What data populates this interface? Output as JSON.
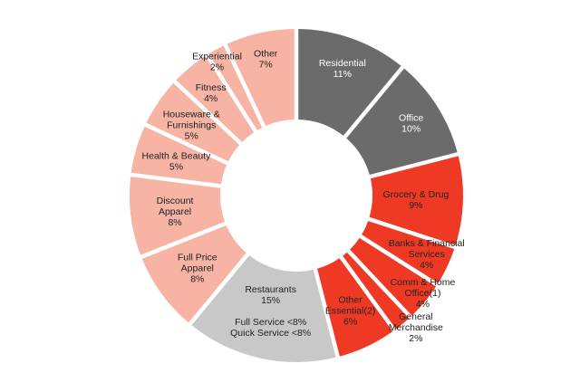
{
  "chart_data": {
    "type": "pie",
    "variant": "donut",
    "title": "",
    "segments": [
      {
        "label": "Residential",
        "value": 11,
        "value_label": "11%",
        "color": "#6b6b6b",
        "text_color": "#ffffff"
      },
      {
        "label": "Office",
        "value": 10,
        "value_label": "10%",
        "color": "#6b6b6b",
        "text_color": "#ffffff"
      },
      {
        "label": "Grocery & Drug",
        "value": 9,
        "value_label": "9%",
        "color": "#ee3a24",
        "text_color": "#222222"
      },
      {
        "label": "Banks & Financial Services",
        "value": 4,
        "value_label": "4%",
        "color": "#ee3a24",
        "text_color": "#222222"
      },
      {
        "label": "Comm & Home Office(1)",
        "value": 4,
        "value_label": "4%",
        "color": "#ee3a24",
        "text_color": "#222222"
      },
      {
        "label": "General Merchandise",
        "value": 2,
        "value_label": "2%",
        "color": "#ee3a24",
        "text_color": "#222222"
      },
      {
        "label": "Other Essential(2)",
        "value": 6,
        "value_label": "6%",
        "color": "#ee3a24",
        "text_color": "#222222"
      },
      {
        "label": "Restaurants",
        "value": 15,
        "value_label": "15%",
        "sublabels": [
          "Full Service <8%",
          "Quick Service <8%"
        ],
        "color": "#c8c8c8",
        "text_color": "#222222"
      },
      {
        "label": "Full Price Apparel",
        "value": 8,
        "value_label": "8%",
        "color": "#f7b3a4",
        "text_color": "#222222"
      },
      {
        "label": "Discount Apparel",
        "value": 8,
        "value_label": "8%",
        "color": "#f7b3a4",
        "text_color": "#222222"
      },
      {
        "label": "Health & Beauty",
        "value": 5,
        "value_label": "5%",
        "color": "#f7b3a4",
        "text_color": "#222222"
      },
      {
        "label": "Houseware & Furnishings",
        "value": 5,
        "value_label": "5%",
        "color": "#f7b3a4",
        "text_color": "#222222"
      },
      {
        "label": "Fitness",
        "value": 4,
        "value_label": "4%",
        "color": "#f7b3a4",
        "text_color": "#222222"
      },
      {
        "label": "Experiential",
        "value": 2,
        "value_label": "2%",
        "color": "#f7b3a4",
        "text_color": "#222222"
      },
      {
        "label": "Other",
        "value": 7,
        "value_label": "7%",
        "color": "#f7b3a4",
        "text_color": "#222222"
      }
    ]
  }
}
